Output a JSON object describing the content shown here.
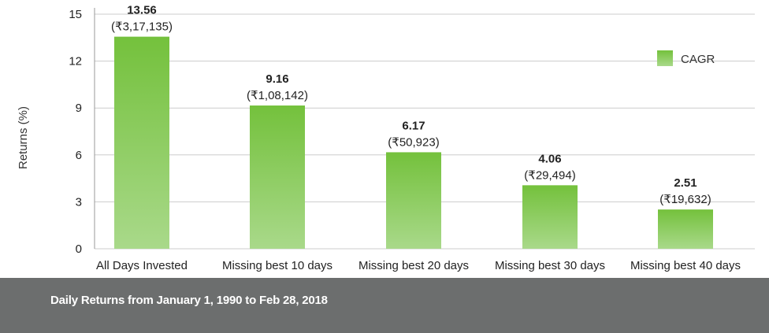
{
  "colors": {
    "bar_top": "#74c13c",
    "bar_bottom": "#a9d98a",
    "grid": "#cccccc",
    "axis": "#999999",
    "text": "#222222",
    "footer_bg": "#6c6e6e",
    "footer_text": "#ffffff"
  },
  "chart_data": {
    "type": "bar",
    "title": "",
    "xlabel": "",
    "ylabel": "Returns (%)",
    "ylim": [
      0,
      15
    ],
    "yticks": [
      0,
      3,
      6,
      9,
      12,
      15
    ],
    "grid": true,
    "legend_position": "top-right",
    "categories": [
      "All Days Invested",
      "Missing best 10 days",
      "Missing best 20 days",
      "Missing best 30 days",
      "Missing best 40 days"
    ],
    "series": [
      {
        "name": "CAGR",
        "values": [
          13.56,
          9.16,
          6.17,
          4.06,
          2.51
        ],
        "value_labels": [
          "13.56",
          "9.16",
          "6.17",
          "4.06",
          "2.51"
        ],
        "amount_labels": [
          "(₹3,17,135)",
          "(₹1,08,142)",
          "(₹50,923)",
          "(₹29,494)",
          "(₹19,632)"
        ]
      }
    ]
  },
  "footer": {
    "note": "Daily Returns from January 1, 1990 to Feb 28, 2018"
  }
}
